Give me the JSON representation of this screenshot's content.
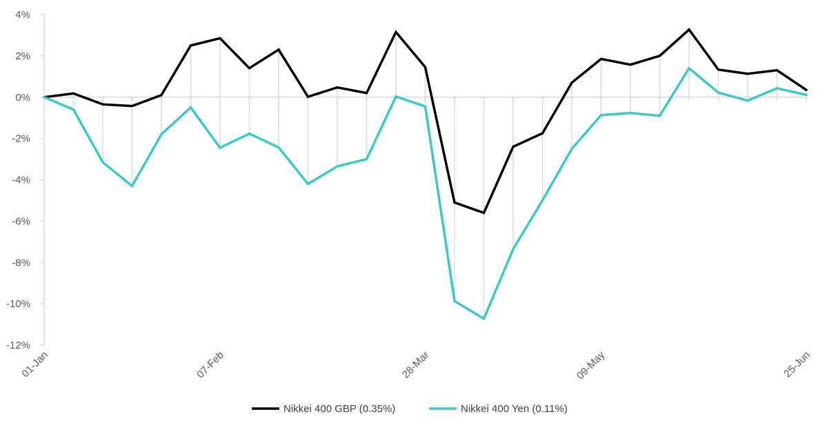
{
  "chart_data": {
    "type": "line",
    "title": "",
    "xlabel": "",
    "ylabel": "",
    "ylim": [
      -12,
      4
    ],
    "yticks": [
      4,
      2,
      0,
      -2,
      -4,
      -6,
      -8,
      -10,
      -12
    ],
    "ytick_labels": [
      "4%",
      "2%",
      "0%",
      "-2%",
      "-4%",
      "-6%",
      "-8%",
      "-10%",
      "-12%"
    ],
    "x_count": 27,
    "x_tick_labels": [
      {
        "index": 0,
        "label": "01-Jan"
      },
      {
        "index": 6,
        "label": "07-Feb"
      },
      {
        "index": 13,
        "label": "28-Mar"
      },
      {
        "index": 19,
        "label": "09-May"
      },
      {
        "index": 26,
        "label": "25-Jun"
      }
    ],
    "grid": "vertical drop lines",
    "legend": "bottom",
    "series": [
      {
        "name": "Nikkei 400 GBP (0.35%)",
        "color": "#000000",
        "values": [
          0.0,
          0.18,
          -0.35,
          -0.43,
          0.1,
          2.5,
          2.85,
          1.4,
          2.3,
          0.02,
          0.47,
          0.2,
          3.15,
          1.45,
          -5.1,
          -5.6,
          -2.4,
          -1.75,
          0.7,
          1.85,
          1.57,
          2.0,
          3.27,
          1.33,
          1.13,
          1.3,
          0.35
        ]
      },
      {
        "name": "Nikkei 400 Yen (0.11%)",
        "color": "#3cc8c8",
        "values": [
          0.0,
          -0.6,
          -3.15,
          -4.3,
          -1.8,
          -0.5,
          -2.45,
          -1.77,
          -2.43,
          -4.2,
          -3.35,
          -3.0,
          0.03,
          -0.45,
          -9.87,
          -10.72,
          -7.35,
          -5.0,
          -2.5,
          -0.87,
          -0.77,
          -0.9,
          1.4,
          0.22,
          -0.17,
          0.43,
          0.11
        ]
      }
    ]
  }
}
